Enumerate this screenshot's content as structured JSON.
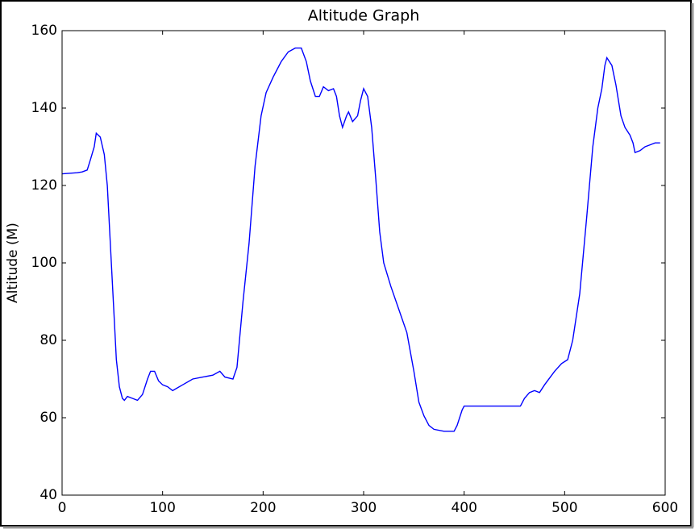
{
  "chart_data": {
    "type": "line",
    "title": "Altitude Graph",
    "y_label": "Altitude (M)",
    "color": "#0000ff",
    "x": [
      0,
      15,
      20,
      25,
      28,
      32,
      34,
      38,
      42,
      45,
      48,
      51,
      54,
      57,
      60,
      62,
      65,
      70,
      75,
      80,
      85,
      88,
      92,
      96,
      100,
      105,
      110,
      120,
      130,
      140,
      150,
      157,
      162,
      170,
      174,
      180,
      186,
      192,
      198,
      203,
      210,
      218,
      225,
      232,
      238,
      243,
      247,
      252,
      256,
      260,
      265,
      270,
      273,
      276,
      279,
      283,
      285,
      289,
      294,
      297,
      300,
      304,
      308,
      312,
      316,
      320,
      327,
      335,
      343,
      350,
      355,
      360,
      365,
      370,
      380,
      390,
      393,
      398,
      400,
      420,
      440,
      456,
      460,
      465,
      470,
      475,
      480,
      490,
      497,
      503,
      508,
      515,
      522,
      528,
      533,
      537,
      540,
      542,
      547,
      551,
      556,
      560,
      565,
      568,
      570,
      575,
      580,
      585,
      590,
      595
    ],
    "values": [
      123,
      123.3,
      123.5,
      124,
      126.5,
      130,
      133.5,
      132.5,
      128,
      120,
      105,
      90,
      75,
      68,
      65,
      64.5,
      65.5,
      65,
      64.5,
      66,
      70,
      72,
      72,
      69.5,
      68.5,
      68,
      67,
      68.5,
      70,
      70.5,
      71,
      72,
      70.5,
      70,
      73,
      90,
      105,
      125,
      138,
      144,
      148,
      152,
      154.5,
      155.5,
      155.5,
      152,
      147,
      143,
      143,
      145.5,
      144.5,
      145,
      143,
      138,
      135,
      138,
      139,
      136.5,
      138,
      142,
      145,
      143,
      135,
      122,
      108,
      100,
      94,
      88,
      82,
      72,
      64,
      60.5,
      58,
      57,
      56.5,
      56.5,
      58,
      62,
      63,
      63,
      63,
      63,
      65,
      66.5,
      67,
      66.5,
      68.5,
      72,
      74,
      75,
      80,
      92,
      112,
      130,
      140,
      145,
      151,
      153,
      151,
      146,
      138,
      135,
      133,
      131,
      128.5,
      129,
      130,
      130.5,
      131,
      131
    ],
    "xlim": [
      0,
      600
    ],
    "ylim": [
      40,
      160
    ],
    "xticks": [
      0,
      100,
      200,
      300,
      400,
      500,
      600
    ],
    "yticks": [
      40,
      60,
      80,
      100,
      120,
      140,
      160
    ]
  }
}
